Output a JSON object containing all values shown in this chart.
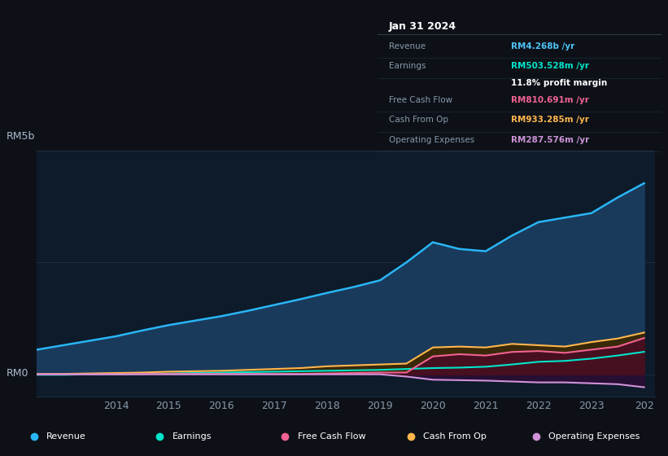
{
  "bg_color": "#0d1117",
  "chart_bg": "#0d1b2a",
  "grid_color": "#1e2d3d",
  "title_box": {
    "date": "Jan 31 2024",
    "rows": [
      {
        "label": "Revenue",
        "value": "RM4.268b /yr",
        "value_color": "#4fc3f7"
      },
      {
        "label": "Earnings",
        "value": "RM503.528m /yr",
        "value_color": "#00e5cc"
      },
      {
        "label": "",
        "value": "11.8% profit margin",
        "value_color": "#ffffff"
      },
      {
        "label": "Free Cash Flow",
        "value": "RM810.691m /yr",
        "value_color": "#f06292"
      },
      {
        "label": "Cash From Op",
        "value": "RM933.285m /yr",
        "value_color": "#ffb74d"
      },
      {
        "label": "Operating Expenses",
        "value": "RM287.576m /yr",
        "value_color": "#ce93d8"
      }
    ]
  },
  "y_label_top": "RM5b",
  "y_label_bottom": "RM0",
  "series": {
    "revenue": {
      "color": "#29b6f6",
      "fill_color": "#1a3a5c",
      "data_x": [
        2012.5,
        2013.0,
        2013.5,
        2014.0,
        2014.5,
        2015.0,
        2015.5,
        2016.0,
        2016.5,
        2017.0,
        2017.5,
        2018.0,
        2018.5,
        2019.0,
        2019.5,
        2020.0,
        2020.5,
        2021.0,
        2021.5,
        2022.0,
        2022.5,
        2023.0,
        2023.5,
        2024.0
      ],
      "data_y": [
        0.55,
        0.65,
        0.75,
        0.85,
        0.98,
        1.1,
        1.2,
        1.3,
        1.42,
        1.55,
        1.68,
        1.82,
        1.95,
        2.1,
        2.5,
        2.95,
        2.8,
        2.75,
        3.1,
        3.4,
        3.5,
        3.6,
        3.95,
        4.268
      ]
    },
    "earnings": {
      "color": "#00e5cc",
      "fill_color": "#004d40",
      "data_x": [
        2012.5,
        2013.0,
        2013.5,
        2014.0,
        2014.5,
        2015.0,
        2015.5,
        2016.0,
        2016.5,
        2017.0,
        2017.5,
        2018.0,
        2018.5,
        2019.0,
        2019.5,
        2020.0,
        2020.5,
        2021.0,
        2021.5,
        2022.0,
        2022.5,
        2023.0,
        2023.5,
        2024.0
      ],
      "data_y": [
        -0.01,
        -0.01,
        0.0,
        0.0,
        0.01,
        0.02,
        0.03,
        0.04,
        0.05,
        0.06,
        0.07,
        0.08,
        0.09,
        0.1,
        0.12,
        0.14,
        0.15,
        0.17,
        0.22,
        0.28,
        0.3,
        0.35,
        0.42,
        0.503
      ]
    },
    "free_cash_flow": {
      "color": "#f06292",
      "fill_color": "#4a0c25",
      "data_x": [
        2012.5,
        2013.0,
        2013.5,
        2014.0,
        2014.5,
        2015.0,
        2015.5,
        2016.0,
        2016.5,
        2017.0,
        2017.5,
        2018.0,
        2018.5,
        2019.0,
        2019.5,
        2020.0,
        2020.5,
        2021.0,
        2021.5,
        2022.0,
        2022.5,
        2023.0,
        2023.5,
        2024.0
      ],
      "data_y": [
        0.0,
        0.0,
        0.0,
        0.0,
        0.01,
        0.01,
        0.01,
        0.01,
        0.01,
        0.01,
        0.01,
        0.02,
        0.03,
        0.04,
        0.04,
        0.4,
        0.45,
        0.42,
        0.5,
        0.52,
        0.48,
        0.55,
        0.62,
        0.81
      ]
    },
    "cash_from_op": {
      "color": "#ffb74d",
      "fill_color": "#3d2800",
      "data_x": [
        2012.5,
        2013.0,
        2013.5,
        2014.0,
        2014.5,
        2015.0,
        2015.5,
        2016.0,
        2016.5,
        2017.0,
        2017.5,
        2018.0,
        2018.5,
        2019.0,
        2019.5,
        2020.0,
        2020.5,
        2021.0,
        2021.5,
        2022.0,
        2022.5,
        2023.0,
        2023.5,
        2024.0
      ],
      "data_y": [
        0.01,
        0.01,
        0.02,
        0.03,
        0.04,
        0.06,
        0.07,
        0.08,
        0.1,
        0.12,
        0.14,
        0.18,
        0.2,
        0.22,
        0.24,
        0.6,
        0.62,
        0.6,
        0.68,
        0.65,
        0.62,
        0.72,
        0.8,
        0.933
      ]
    },
    "operating_expenses": {
      "color": "#ce93d8",
      "fill_color": "#2a0d35",
      "data_x": [
        2012.5,
        2013.0,
        2013.5,
        2014.0,
        2014.5,
        2015.0,
        2015.5,
        2016.0,
        2016.5,
        2017.0,
        2017.5,
        2018.0,
        2018.5,
        2019.0,
        2019.5,
        2020.0,
        2020.5,
        2021.0,
        2021.5,
        2022.0,
        2022.5,
        2023.0,
        2023.5,
        2024.0
      ],
      "data_y": [
        0.0,
        0.0,
        0.0,
        0.0,
        0.0,
        0.0,
        0.0,
        0.0,
        0.0,
        0.0,
        0.0,
        0.0,
        0.0,
        0.0,
        -0.05,
        -0.12,
        -0.13,
        -0.14,
        -0.16,
        -0.18,
        -0.18,
        -0.2,
        -0.22,
        -0.288
      ]
    }
  },
  "legend": [
    {
      "label": "Revenue",
      "color": "#29b6f6"
    },
    {
      "label": "Earnings",
      "color": "#00e5cc"
    },
    {
      "label": "Free Cash Flow",
      "color": "#f06292"
    },
    {
      "label": "Cash From Op",
      "color": "#ffb74d"
    },
    {
      "label": "Operating Expenses",
      "color": "#ce93d8"
    }
  ]
}
